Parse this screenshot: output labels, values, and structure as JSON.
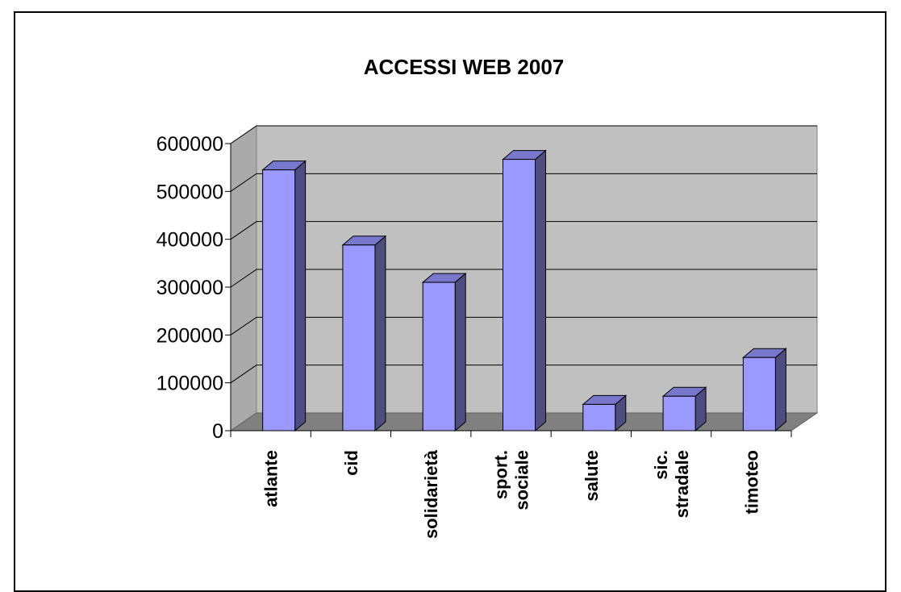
{
  "chart_data": {
    "type": "bar",
    "title": "ACCESSI WEB 2007",
    "xlabel": "",
    "ylabel": "",
    "categories": [
      [
        "atlante"
      ],
      [
        "cid"
      ],
      [
        "solidarietà"
      ],
      [
        "sport.",
        "sociale"
      ],
      [
        "salute"
      ],
      [
        "sic.",
        "stradale"
      ],
      [
        "timoteo"
      ]
    ],
    "values": [
      545000,
      388000,
      310000,
      567000,
      55000,
      72000,
      153000
    ],
    "ylim": [
      0,
      600000
    ],
    "yticks": [
      "0",
      "100000",
      "200000",
      "300000",
      "400000",
      "500000",
      "600000"
    ],
    "grid": true,
    "three_d": true,
    "colors": {
      "bar_front": "#9999ff",
      "bar_side": "#4d4d80",
      "bar_top": "#7777cc",
      "wall": "#c0c0c0",
      "floor": "#808080",
      "side_wall": "#aaaaaa",
      "grid": "#000000"
    }
  }
}
